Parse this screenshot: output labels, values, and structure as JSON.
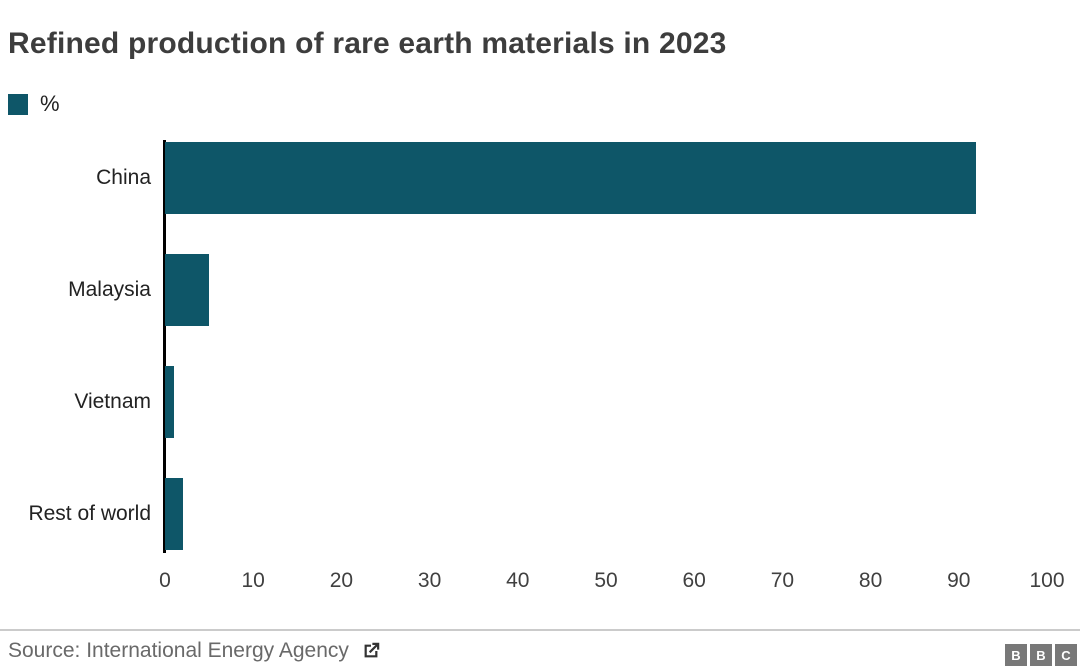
{
  "chart_data": {
    "type": "bar",
    "orientation": "horizontal",
    "title": "Refined production of rare earth materials in 2023",
    "legend_label": "%",
    "legend_position": "top-left",
    "categories": [
      "China",
      "Malaysia",
      "Vietnam",
      "Rest of world"
    ],
    "values": [
      92,
      5,
      1,
      2
    ],
    "xlabel": "",
    "ylabel": "",
    "xlim": [
      0,
      100
    ],
    "x_ticks": [
      0,
      10,
      20,
      30,
      40,
      50,
      60,
      70,
      80,
      90,
      100
    ],
    "grid": false,
    "bar_color": "#0e5668"
  },
  "footer": {
    "source_label": "Source: International Energy Agency",
    "logo_letters": [
      "B",
      "B",
      "C"
    ]
  },
  "colors": {
    "bar": "#0e5668",
    "title_text": "#3d3d3d",
    "axis_line": "#000000",
    "tick_text": "#404040",
    "category_text": "#222222",
    "source_text": "#696969",
    "divider": "#cbcbcb",
    "logo_block": "#787878",
    "icon": "#333333"
  }
}
